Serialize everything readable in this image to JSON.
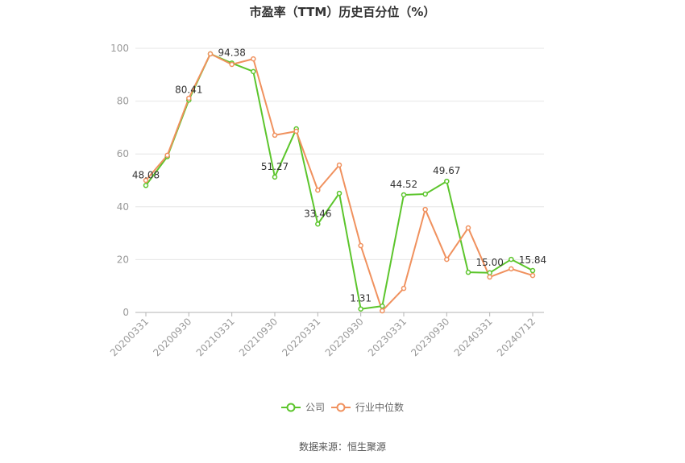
{
  "source": "数据来源：恒生聚源",
  "chart_data": {
    "type": "line",
    "title": "市盈率（TTM）历史百分位（%）",
    "xlabel": "",
    "ylabel": "",
    "x_tick_labels": [
      "20200331",
      "20200930",
      "20210331",
      "20210930",
      "20220331",
      "20220930",
      "20230331",
      "20230930",
      "20240331",
      "20240712"
    ],
    "y_ticks": [
      0,
      20,
      40,
      60,
      80,
      100
    ],
    "ylim": [
      0,
      100
    ],
    "grid": true,
    "legend_position": "bottom",
    "series": [
      {
        "name": "公司",
        "color": "#5cc52c",
        "values": [
          48.08,
          59.0,
          80.41,
          97.9,
          94.38,
          91.2,
          51.27,
          69.5,
          33.46,
          45.1,
          1.31,
          2.4,
          44.52,
          44.8,
          49.67,
          15.2,
          15.0,
          20.1,
          15.84
        ],
        "labels": [
          "48.08",
          null,
          "80.41",
          null,
          "94.38",
          null,
          "51.27",
          null,
          "33.46",
          null,
          "1.31",
          null,
          "44.52",
          null,
          "49.67",
          null,
          "15.00",
          null,
          "15.84"
        ]
      },
      {
        "name": "行业中位数",
        "color": "#f0915e",
        "values": [
          50.0,
          59.5,
          81.1,
          97.9,
          93.9,
          96.0,
          67.1,
          68.6,
          46.3,
          55.8,
          25.3,
          0.6,
          9.1,
          39.0,
          20.1,
          32.0,
          13.4,
          16.5,
          14.0
        ]
      }
    ]
  }
}
